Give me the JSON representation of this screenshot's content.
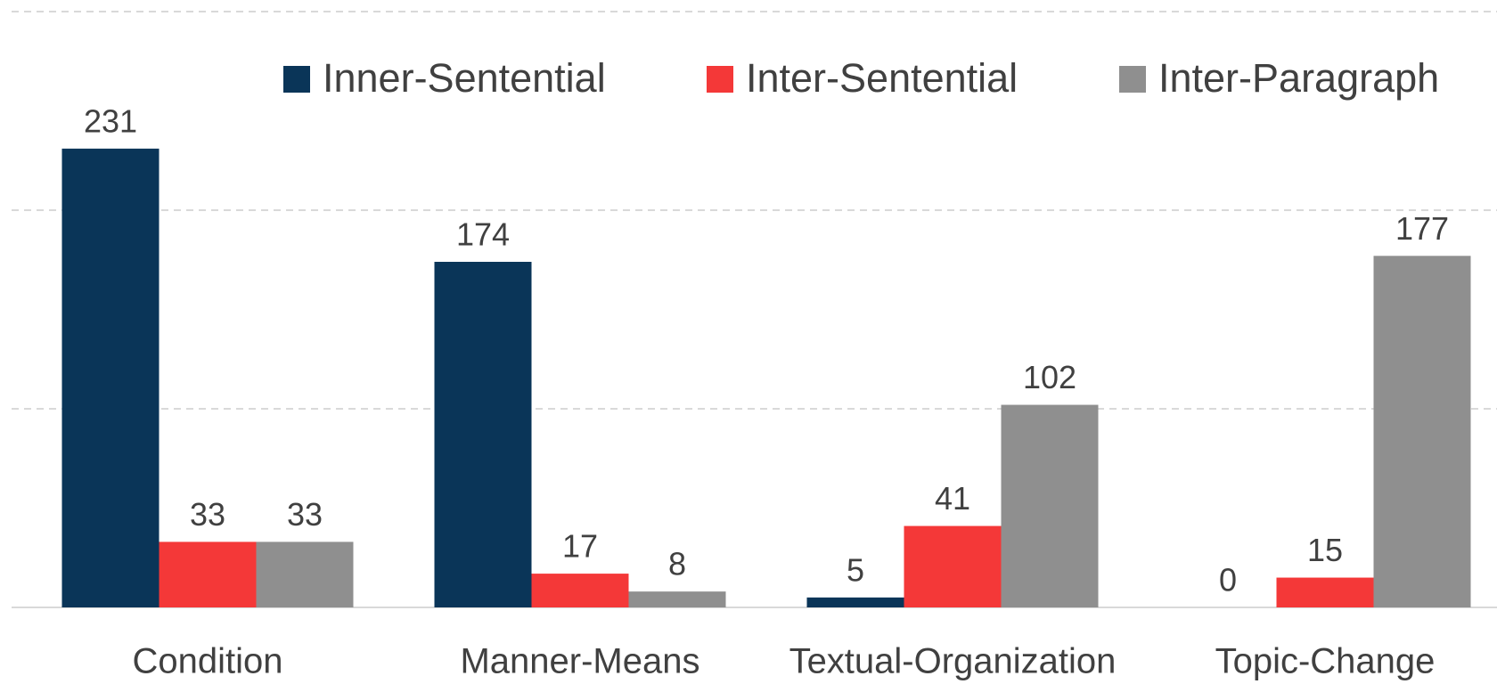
{
  "chart_data": {
    "type": "bar",
    "categories": [
      "Condition",
      "Manner-Means",
      "Textual-Organization",
      "Topic-Change"
    ],
    "series": [
      {
        "name": "Inner-Sentential",
        "color": "#0a3558",
        "values": [
          231,
          174,
          5,
          0
        ]
      },
      {
        "name": "Inter-Sentential",
        "color": "#f43838",
        "values": [
          33,
          17,
          41,
          15
        ]
      },
      {
        "name": "Inter-Paragraph",
        "color": "#8f8f8f",
        "values": [
          33,
          8,
          102,
          177
        ]
      }
    ],
    "ylim": [
      0,
      300
    ],
    "yticks": [
      0,
      100,
      200,
      300
    ],
    "grid": true,
    "legend": "top"
  }
}
